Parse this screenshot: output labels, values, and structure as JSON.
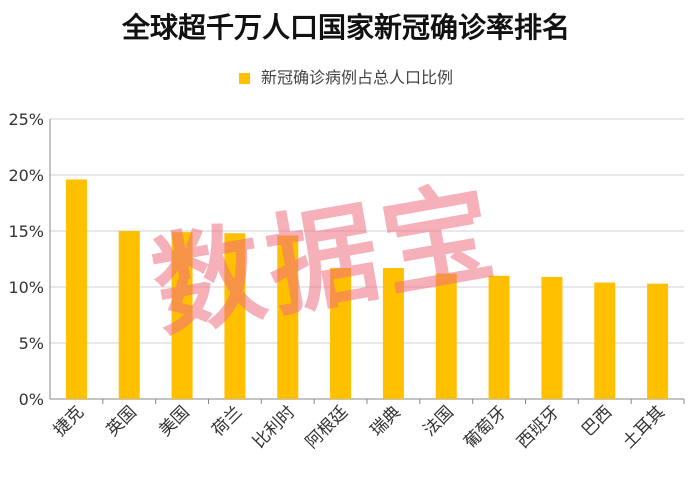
{
  "chart_data": {
    "type": "bar",
    "title": "全球超千万人口国家新冠确诊率排名",
    "categories": [
      "捷克",
      "英国",
      "美国",
      "荷兰",
      "比利时",
      "阿根廷",
      "瑞典",
      "法国",
      "葡萄牙",
      "西班牙",
      "巴西",
      "土耳其"
    ],
    "series": [
      {
        "name": "新冠确诊病例占总人口比例",
        "values": [
          19.6,
          15.0,
          14.9,
          14.8,
          14.6,
          11.7,
          11.7,
          11.2,
          11.0,
          10.9,
          10.4,
          10.3
        ]
      }
    ],
    "y_ticks": [
      "0%",
      "5%",
      "10%",
      "15%",
      "20%",
      "25%"
    ],
    "ylim": [
      0,
      25
    ],
    "grid": true,
    "legend_position": "top",
    "bar_color": "#FFC000"
  },
  "watermark": "数据宝"
}
